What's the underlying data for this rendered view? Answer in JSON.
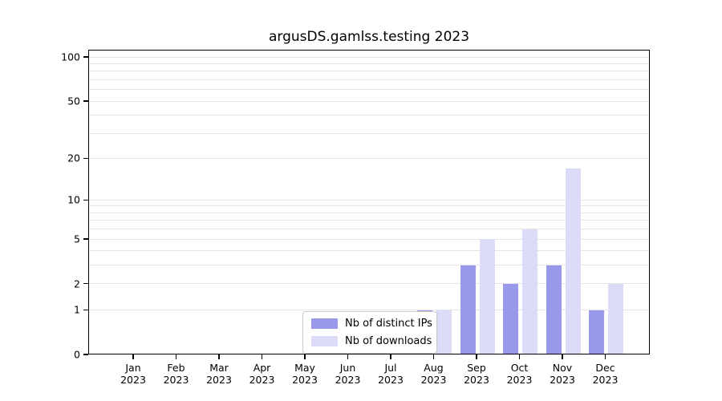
{
  "chart_data": {
    "type": "bar",
    "title": "argusDS.gamlss.testing 2023",
    "scale": "log1p",
    "months": [
      "Jan",
      "Feb",
      "Mar",
      "Apr",
      "May",
      "Jun",
      "Jul",
      "Aug",
      "Sep",
      "Oct",
      "Nov",
      "Dec"
    ],
    "year": "2023",
    "categories": [
      "Jan 2023",
      "Feb 2023",
      "Mar 2023",
      "Apr 2023",
      "May 2023",
      "Jun 2023",
      "Jul 2023",
      "Aug 2023",
      "Sep 2023",
      "Oct 2023",
      "Nov 2023",
      "Dec 2023"
    ],
    "series": [
      {
        "name": "Nb of distinct IPs",
        "color": "#9999ec",
        "values": [
          0,
          0,
          0,
          0,
          0,
          0,
          0,
          1,
          3,
          2,
          3,
          1
        ]
      },
      {
        "name": "Nb of downloads",
        "color": "#dcdcf8",
        "values": [
          0,
          0,
          0,
          0,
          0,
          0,
          0,
          1,
          5,
          6,
          17,
          2
        ]
      }
    ],
    "y_ticks": [
      0,
      1,
      2,
      5,
      10,
      20,
      50,
      100
    ],
    "gridlines": [
      1,
      2,
      3,
      4,
      5,
      6,
      7,
      8,
      9,
      10,
      20,
      30,
      40,
      50,
      60,
      70,
      80,
      90,
      100
    ],
    "ylim": [
      0,
      100
    ],
    "legend_position": "lower center",
    "grid": "horizontal only"
  },
  "colors": {
    "distinct_ips": "#9999ec",
    "downloads": "#dcdcf8",
    "gridline": "#e3e3e3",
    "axis": "#000000",
    "legend_border": "#c9c9c9"
  }
}
